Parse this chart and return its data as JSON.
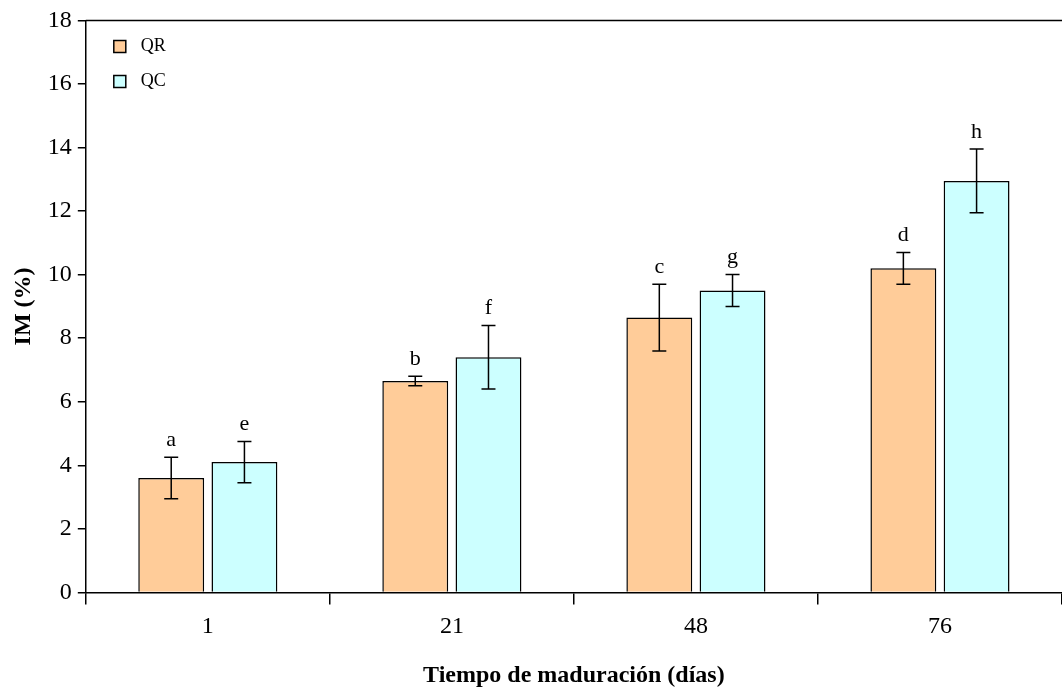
{
  "chart_data": {
    "type": "bar",
    "xlabel": "Tiempo de maduración (días)",
    "ylabel": "IM (%)",
    "categories": [
      "1",
      "21",
      "48",
      "76"
    ],
    "series": [
      {
        "name": "QR",
        "color": "#ffcc99",
        "values": [
          3.6,
          6.65,
          8.65,
          10.2
        ],
        "errors": [
          0.65,
          0.15,
          1.05,
          0.5
        ]
      },
      {
        "name": "QC",
        "color": "#ccffff",
        "values": [
          4.1,
          7.4,
          9.5,
          12.95
        ],
        "errors": [
          0.65,
          1.0,
          0.5,
          1.0
        ]
      }
    ],
    "ylim": [
      0,
      18
    ],
    "yticks": [
      0,
      2,
      4,
      6,
      8,
      10,
      12,
      14,
      16,
      18
    ],
    "grid": false,
    "legend": "top left",
    "annotations": [
      "a",
      "e",
      "b",
      "f",
      "c",
      "g",
      "d",
      "h"
    ]
  }
}
